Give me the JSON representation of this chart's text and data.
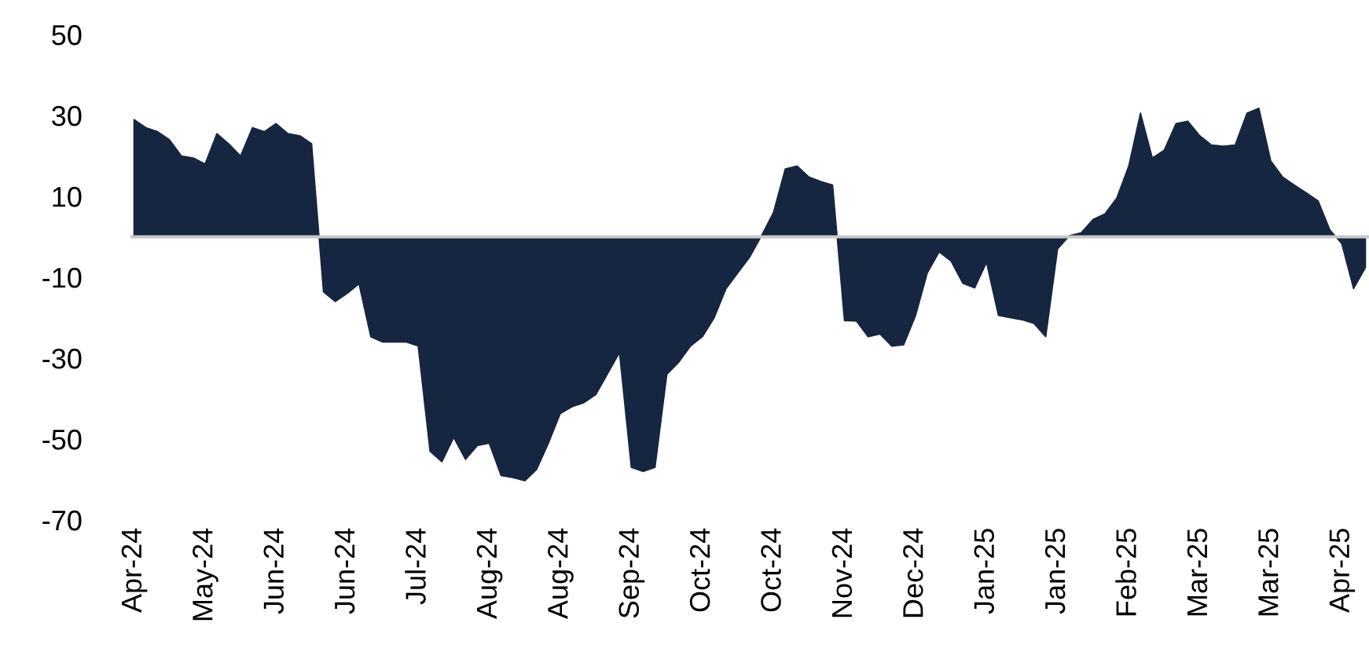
{
  "chart_data": {
    "type": "area",
    "color": "#172640",
    "categories": [
      "Apr-24",
      null,
      null,
      null,
      null,
      null,
      "May-24",
      null,
      null,
      null,
      null,
      null,
      "Jun-24",
      null,
      null,
      null,
      null,
      null,
      "Jun-24",
      null,
      null,
      null,
      null,
      null,
      "Jul-24",
      null,
      null,
      null,
      null,
      null,
      "Aug-24",
      null,
      null,
      null,
      null,
      null,
      "Aug-24",
      null,
      null,
      null,
      null,
      null,
      "Sep-24",
      null,
      null,
      null,
      null,
      null,
      "Oct-24",
      null,
      null,
      null,
      null,
      null,
      "Oct-24",
      null,
      null,
      null,
      null,
      null,
      "Nov-24",
      null,
      null,
      null,
      null,
      null,
      "Dec-24",
      null,
      null,
      null,
      null,
      null,
      "Jan-25",
      null,
      null,
      null,
      null,
      null,
      "Jan-25",
      null,
      null,
      null,
      null,
      null,
      "Feb-25",
      null,
      null,
      null,
      null,
      null,
      "Mar-25",
      null,
      null,
      null,
      null,
      null,
      "Mar-25",
      null,
      null,
      null,
      null,
      null,
      "Apr-25",
      null,
      null
    ],
    "values": [
      29,
      27,
      26,
      24,
      20,
      19.5,
      18,
      25.5,
      23,
      20,
      27,
      26,
      28,
      25.5,
      25,
      23,
      -13.6,
      -16,
      -14,
      -11.6,
      -24.7,
      -26,
      -26,
      -26,
      -27,
      -53,
      -55.6,
      -49.6,
      -55,
      -51.6,
      -51,
      -59,
      -59.5,
      -60.3,
      -57.5,
      -51,
      -43.7,
      -42,
      -41,
      -39,
      -33.8,
      -28.6,
      -57,
      -58,
      -57,
      -34,
      -31,
      -27,
      -24.7,
      -20,
      -12.8,
      -8.9,
      -5,
      0.3,
      6,
      16.8,
      17.5,
      14.8,
      13.7,
      12.8,
      -20.7,
      -20.8,
      -24.7,
      -24,
      -27,
      -26.7,
      -19.5,
      -8.9,
      -3.7,
      -6,
      -11.5,
      -12.6,
      -6.3,
      -19.4,
      -20,
      -20.5,
      -21.4,
      -24.7,
      -3,
      0.3,
      1,
      4.3,
      5.7,
      9.6,
      17.4,
      30.6,
      19.5,
      21.4,
      28,
      28.6,
      25,
      22.7,
      22.4,
      22.7,
      30.6,
      31.8,
      18.8,
      14.8,
      12.8,
      10.9,
      8.9,
      1.7,
      -1.7,
      -12.8,
      -7.6
    ],
    "ylim": [
      -70,
      50
    ],
    "yticks": [
      -70,
      -50,
      -30,
      -10,
      10,
      30,
      50
    ],
    "ref_lines": [
      {
        "axis": "y",
        "value": 0,
        "color": "#c8c8c8"
      }
    ],
    "grid": false,
    "legend": false
  }
}
